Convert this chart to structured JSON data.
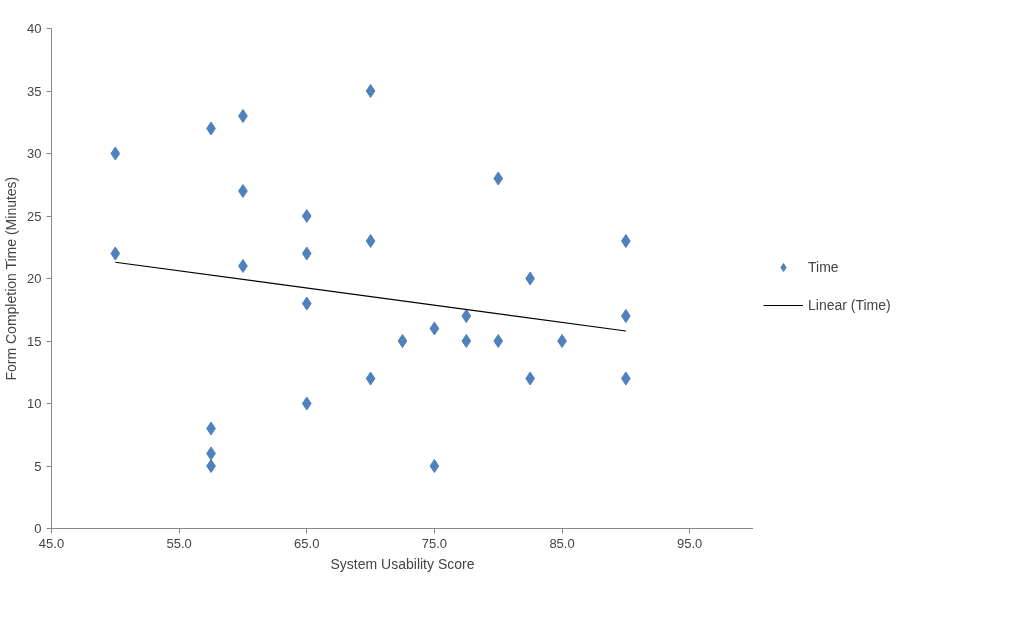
{
  "chart_data": {
    "type": "scatter",
    "xlabel": "System Usability Score",
    "ylabel": "Form Completion Time (Minutes)",
    "xlim": [
      45,
      100
    ],
    "xticks": [
      {
        "value": 45,
        "label": "45.0"
      },
      {
        "value": 55,
        "label": "55.0"
      },
      {
        "value": 65,
        "label": "65.0"
      },
      {
        "value": 75,
        "label": "75.0"
      },
      {
        "value": 85,
        "label": "85.0"
      },
      {
        "value": 95,
        "label": "95.0"
      }
    ],
    "ylim": [
      0,
      40
    ],
    "yticks": [
      0,
      5,
      10,
      15,
      20,
      25,
      30,
      35,
      40
    ],
    "grid": false,
    "legend": "right",
    "series": [
      {
        "name": "Time",
        "marker": "diamond",
        "color": "#4f81bd",
        "x": [
          50,
          50,
          57.5,
          57.5,
          57.5,
          57.5,
          60,
          60,
          60,
          65,
          65,
          65,
          65,
          70,
          70,
          70,
          72.5,
          75,
          75,
          77.5,
          77.5,
          80,
          80,
          82.5,
          82.5,
          85,
          90,
          90,
          90
        ],
        "values": [
          30,
          22,
          32,
          8,
          6,
          5,
          33,
          27,
          21,
          25,
          22,
          18,
          10,
          35,
          23,
          12,
          15,
          16,
          5,
          17,
          15,
          28,
          15,
          20,
          12,
          15,
          23,
          17,
          12
        ]
      },
      {
        "name": "Linear (Time)",
        "type": "line",
        "line_style": "solid",
        "color": "#000000",
        "x": [
          50,
          90
        ],
        "values": [
          21.3,
          15.8
        ]
      }
    ]
  }
}
